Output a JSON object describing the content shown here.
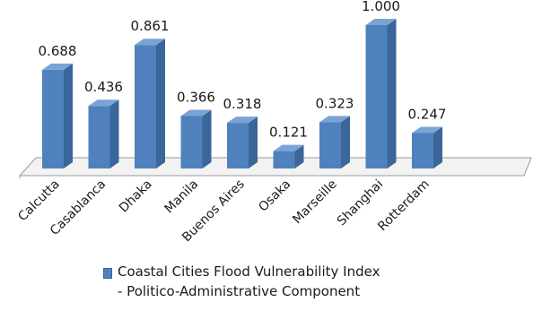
{
  "chart_data": {
    "type": "bar",
    "categories": [
      "Calcutta",
      "Casablanca",
      "Dhaka",
      "Manila",
      "Buenos Aires",
      "Osaka",
      "Marseille",
      "Shanghai",
      "Rotterdam"
    ],
    "series": [
      {
        "name": "Coastal Cities Flood Vulnerability Index - Politico-Administrative  Component",
        "values": [
          0.688,
          0.436,
          0.861,
          0.366,
          0.318,
          0.121,
          0.323,
          1.0,
          0.247
        ],
        "value_labels": [
          "0.688",
          "0.436",
          "0.861",
          "0.366",
          "0.318",
          "0.121",
          "0.323",
          "1.000",
          "0.247"
        ]
      }
    ],
    "title": "",
    "xlabel": "",
    "ylabel": "",
    "ylim": [
      0,
      1
    ],
    "grid": false,
    "legend_position": "bottom",
    "style": "3d-column",
    "colors": {
      "bar_front": "#4f81bd",
      "bar_side": "#3a6699",
      "bar_top": "#7aa3d6",
      "floor": "#f2f2f2",
      "floor_edge": "#999999"
    }
  },
  "legend": {
    "line1": "Coastal Cities Flood Vulnerability Index",
    "line2": "- Politico-Administrative  Component"
  }
}
